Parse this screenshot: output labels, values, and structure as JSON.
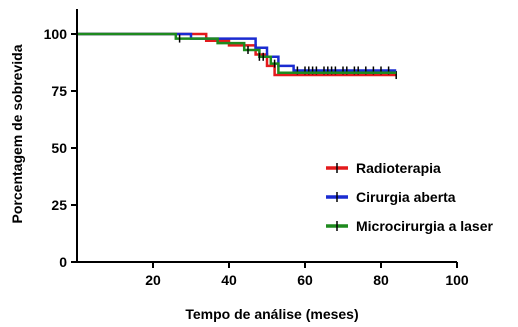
{
  "chart_data": {
    "type": "line",
    "title": "",
    "xlabel": "Tempo de análise (meses)",
    "ylabel": "Porcentagem de sobrevida",
    "xlim": [
      0,
      100
    ],
    "ylim": [
      0,
      100
    ],
    "xticks": [
      20,
      40,
      60,
      80,
      100
    ],
    "yticks": [
      0,
      25,
      50,
      75,
      100
    ],
    "grid": false,
    "legend_position": "right",
    "series": [
      {
        "name": "Radioterapia",
        "color": "#e31a1c",
        "step": true,
        "x": [
          0,
          34,
          34,
          40,
          40,
          47,
          47,
          50,
          50,
          52,
          52,
          84
        ],
        "y": [
          100,
          100,
          97,
          97,
          95,
          95,
          91,
          91,
          86,
          86,
          82,
          82
        ],
        "censored_x": [
          84
        ]
      },
      {
        "name": "Cirurgia aberta",
        "color": "#1a2bd1",
        "step": true,
        "x": [
          0,
          30,
          30,
          47,
          47,
          50,
          50,
          53,
          53,
          57,
          57,
          84
        ],
        "y": [
          100,
          100,
          98,
          98,
          94,
          94,
          90,
          90,
          86,
          86,
          84,
          84
        ],
        "censored_x": [
          58,
          60,
          61,
          62,
          63,
          65,
          66,
          67,
          68,
          70,
          71,
          73,
          74,
          76,
          78,
          80,
          82
        ]
      },
      {
        "name": "Microcirurgia a laser",
        "color": "#1e8a1e",
        "step": true,
        "x": [
          0,
          26,
          26,
          37,
          37,
          44,
          44,
          48,
          48,
          51,
          51,
          53,
          53,
          84
        ],
        "y": [
          100,
          100,
          98,
          98,
          96,
          96,
          93,
          93,
          90,
          90,
          87,
          87,
          83,
          83
        ],
        "censored_x": [
          27,
          45,
          48,
          49,
          52
        ]
      }
    ]
  }
}
